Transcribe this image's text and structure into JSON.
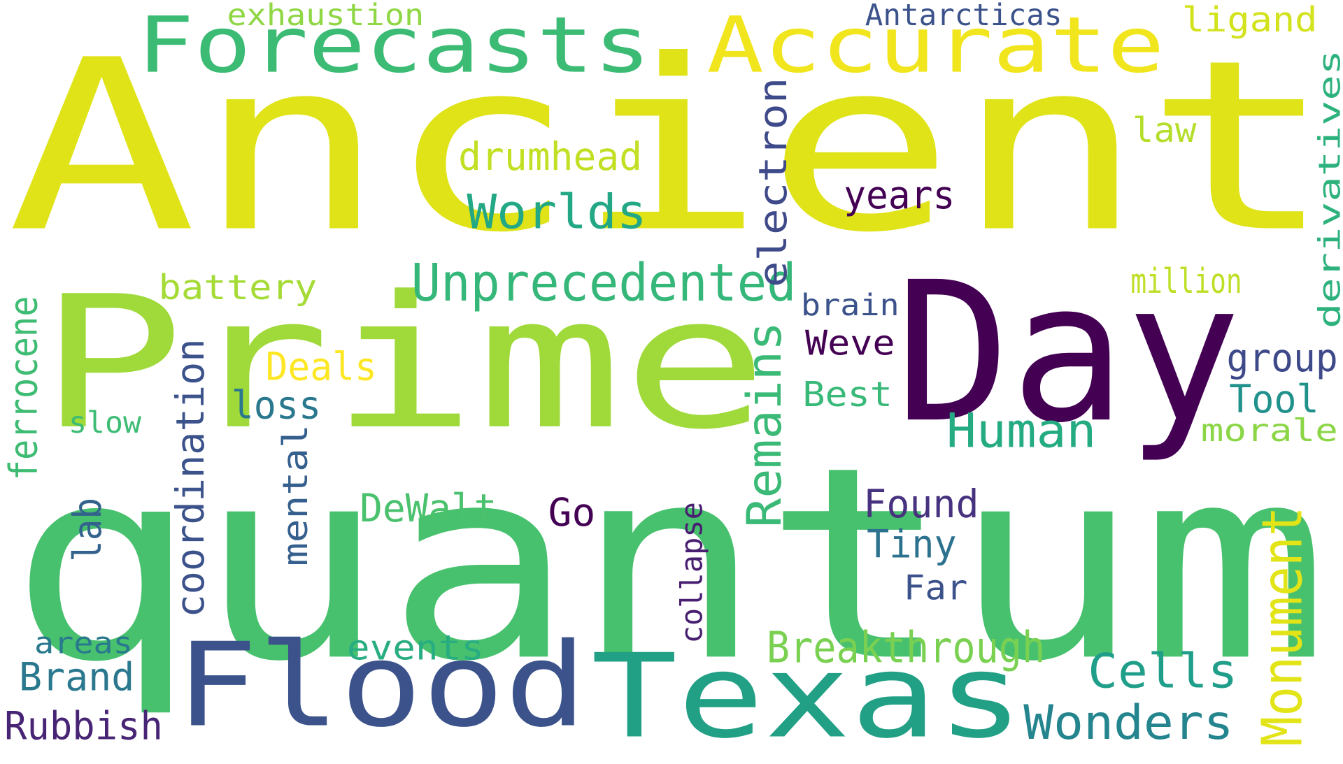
{
  "words": [
    {
      "text": "Ancient",
      "color": "#dfe318"
    },
    {
      "text": "quantum",
      "color": "#48c16e"
    },
    {
      "text": "Prime",
      "color": "#9fda3a"
    },
    {
      "text": "Day",
      "color": "#440154"
    },
    {
      "text": "Flood",
      "color": "#3b528b"
    },
    {
      "text": "Texas",
      "color": "#21a085"
    },
    {
      "text": "Forecasts",
      "color": "#3cbb75"
    },
    {
      "text": "Accurate",
      "color": "#f1e51d"
    },
    {
      "text": "Unprecedented",
      "color": "#35b779"
    },
    {
      "text": "Worlds",
      "color": "#22a884"
    },
    {
      "text": "drumhead",
      "color": "#c2df23"
    },
    {
      "text": "electron",
      "color": "#3e4a89"
    },
    {
      "text": "Remains",
      "color": "#3aba76"
    },
    {
      "text": "Human",
      "color": "#25ab82"
    },
    {
      "text": "Monument",
      "color": "#e2e418"
    },
    {
      "text": "Cells",
      "color": "#1f9e89"
    },
    {
      "text": "Wonders",
      "color": "#25858e"
    },
    {
      "text": "Breakthrough",
      "color": "#7ad151"
    },
    {
      "text": "events",
      "color": "#27ad81"
    },
    {
      "text": "DeWalt",
      "color": "#4ac16d"
    },
    {
      "text": "coordination",
      "color": "#3b528b"
    },
    {
      "text": "mental",
      "color": "#355f8d"
    },
    {
      "text": "collapse",
      "color": "#481f70"
    },
    {
      "text": "ferrocene",
      "color": "#3fbc73"
    },
    {
      "text": "lab",
      "color": "#33638d"
    },
    {
      "text": "battery",
      "color": "#a5db36"
    },
    {
      "text": "Deals",
      "color": "#fde725"
    },
    {
      "text": "loss",
      "color": "#2a788e"
    },
    {
      "text": "slow",
      "color": "#3dbc74"
    },
    {
      "text": "Go",
      "color": "#440154"
    },
    {
      "text": "Found",
      "color": "#46327e"
    },
    {
      "text": "Tiny",
      "color": "#2c728e"
    },
    {
      "text": "Far",
      "color": "#3b528b"
    },
    {
      "text": "Best",
      "color": "#38b977"
    },
    {
      "text": "Weve",
      "color": "#440154"
    },
    {
      "text": "brain",
      "color": "#3b528b"
    },
    {
      "text": "years",
      "color": "#440154"
    },
    {
      "text": "million",
      "color": "#bddf26"
    },
    {
      "text": "group",
      "color": "#3e4989"
    },
    {
      "text": "Tool",
      "color": "#21918c"
    },
    {
      "text": "morale",
      "color": "#8bd646"
    },
    {
      "text": "law",
      "color": "#b5de2b"
    },
    {
      "text": "derivatives",
      "color": "#2db27d"
    },
    {
      "text": "ligand",
      "color": "#d2e21b"
    },
    {
      "text": "Antarcticas",
      "color": "#3b528b"
    },
    {
      "text": "exhaustion",
      "color": "#8fd744"
    },
    {
      "text": "areas",
      "color": "#29798e"
    },
    {
      "text": "Brand",
      "color": "#2a788e"
    },
    {
      "text": "Rubbish",
      "color": "#482475"
    }
  ]
}
